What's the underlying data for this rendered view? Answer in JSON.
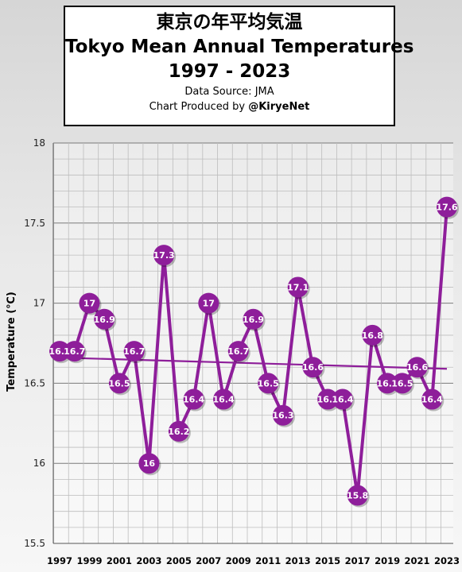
{
  "header": {
    "title_jp": "東京の年平均気温",
    "title_en": "Tokyo Mean Annual Temperatures",
    "years": "1997 - 2023",
    "source": "Data Source: JMA",
    "credit_prefix": "Chart Produced by ",
    "credit_handle": "@KiryeNet"
  },
  "chart_data": {
    "type": "line",
    "title": "Tokyo Mean Annual Temperatures",
    "xlabel": "",
    "ylabel": "Temperature (℃)",
    "x": [
      1997,
      1998,
      1999,
      2000,
      2001,
      2002,
      2003,
      2004,
      2005,
      2006,
      2007,
      2008,
      2009,
      2010,
      2011,
      2012,
      2013,
      2014,
      2015,
      2016,
      2017,
      2018,
      2019,
      2020,
      2021,
      2022,
      2023
    ],
    "series": [
      {
        "values": [
          16.7,
          16.7,
          17.0,
          16.9,
          16.5,
          16.7,
          16.0,
          17.3,
          16.2,
          16.4,
          17.0,
          16.4,
          16.7,
          16.9,
          16.5,
          16.3,
          17.1,
          16.6,
          16.4,
          16.4,
          15.8,
          16.8,
          16.5,
          16.5,
          16.6,
          16.4,
          17.6
        ],
        "point_labels": [
          "16.7",
          "16.7",
          "17",
          "16.9",
          "16.5",
          "16.7",
          "16",
          "17.3",
          "16.2",
          "16.4",
          "17",
          "16.4",
          "16.7",
          "16.9",
          "16.5",
          "16.3",
          "17.1",
          "16.6",
          "16.4",
          "16.4",
          "15.8",
          "16.8",
          "16.5",
          "16.5",
          "16.6",
          "16.4",
          "17.6"
        ],
        "color": "#8e1e9a"
      }
    ],
    "trendline": {
      "start": 16.66,
      "end": 16.59,
      "color": "#8e1e9a"
    },
    "y_ticks": [
      "15.5",
      "16",
      "16.5",
      "17",
      "17.5",
      "18"
    ],
    "x_ticks": [
      "1997",
      "1999",
      "2001",
      "2003",
      "2005",
      "2007",
      "2009",
      "2011",
      "2013",
      "2015",
      "2017",
      "2019",
      "2021",
      "2023"
    ],
    "ylim": [
      15.5,
      18
    ],
    "xlim": [
      1997,
      2023
    ],
    "grid": true,
    "legend": "none"
  }
}
